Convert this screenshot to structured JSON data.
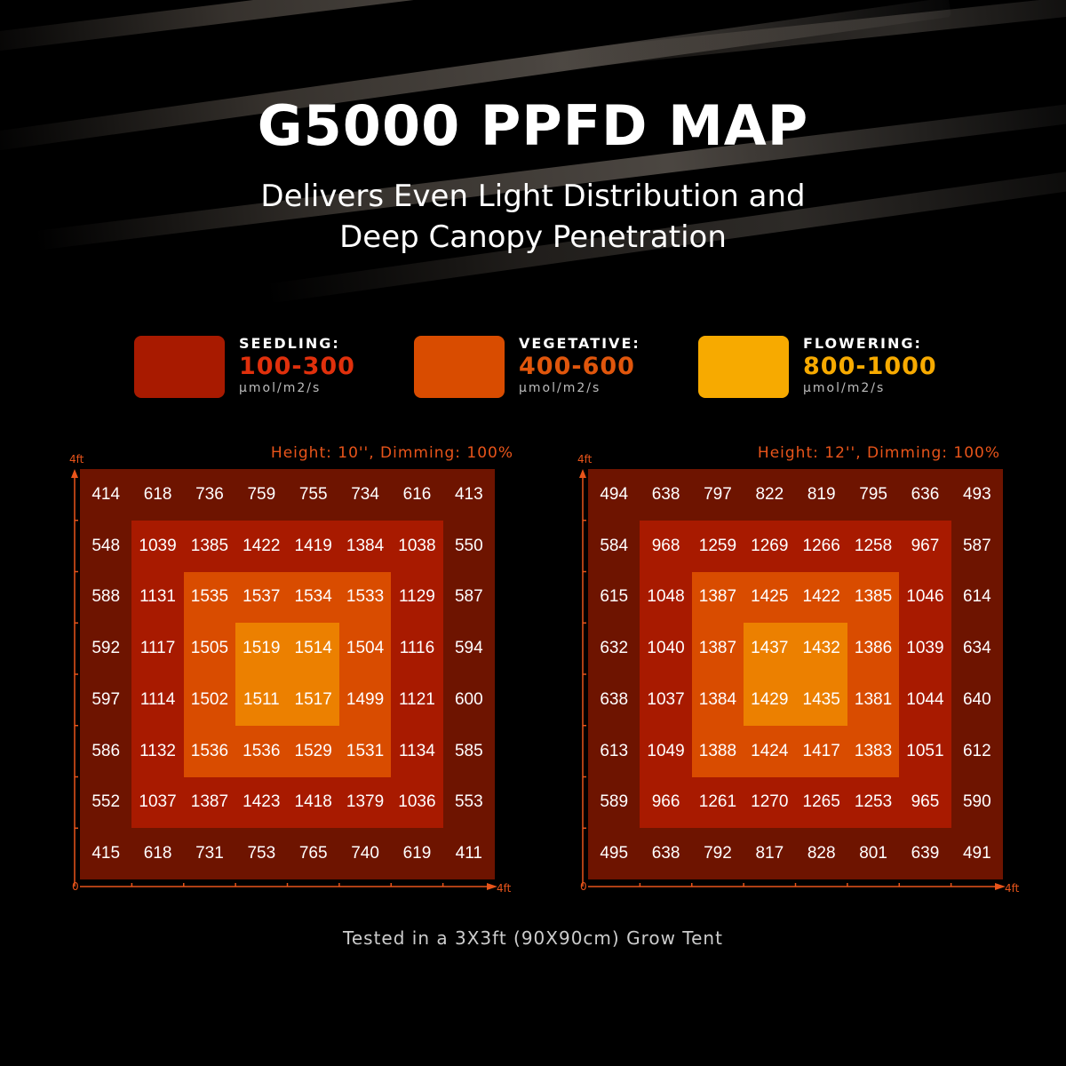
{
  "header": {
    "title": "G5000 PPFD MAP",
    "subtitle_line1": "Delivers Even Light Distribution and",
    "subtitle_line2": "Deep Canopy Penetration"
  },
  "legend": [
    {
      "name": "SEEDLING:",
      "range": "100-300",
      "unit": "μmol/m2/s",
      "color": "#a81a00",
      "text_color": "#e0300c"
    },
    {
      "name": "VEGETATIVE:",
      "range": "400-600",
      "unit": "μmol/m2/s",
      "color": "#d94c00",
      "text_color": "#e0560c"
    },
    {
      "name": "FLOWERING:",
      "range": "800-1000",
      "unit": "μmol/m2/s",
      "color": "#f7aa00",
      "text_color": "#f7aa00"
    }
  ],
  "ring_colors": [
    "#6e1400",
    "#a81a00",
    "#d94c00",
    "#ec8000"
  ],
  "axis_color": "#e8541a",
  "chart_data": [
    {
      "type": "heatmap",
      "title": "Height: 10'', Dimming: 100%",
      "x_axis": {
        "start_label": "0",
        "end_label": "4ft"
      },
      "y_axis": {
        "end_label": "4ft"
      },
      "values": [
        [
          414,
          618,
          736,
          759,
          755,
          734,
          616,
          413
        ],
        [
          548,
          1039,
          1385,
          1422,
          1419,
          1384,
          1038,
          550
        ],
        [
          588,
          1131,
          1535,
          1537,
          1534,
          1533,
          1129,
          587
        ],
        [
          592,
          1117,
          1505,
          1519,
          1514,
          1504,
          1116,
          594
        ],
        [
          597,
          1114,
          1502,
          1511,
          1517,
          1499,
          1121,
          600
        ],
        [
          586,
          1132,
          1536,
          1536,
          1529,
          1531,
          1134,
          585
        ],
        [
          552,
          1037,
          1387,
          1423,
          1418,
          1379,
          1036,
          553
        ],
        [
          415,
          618,
          731,
          753,
          765,
          740,
          619,
          411
        ]
      ]
    },
    {
      "type": "heatmap",
      "title": "Height: 12'', Dimming: 100%",
      "x_axis": {
        "start_label": "0",
        "end_label": "4ft"
      },
      "y_axis": {
        "end_label": "4ft"
      },
      "values": [
        [
          494,
          638,
          797,
          822,
          819,
          795,
          636,
          493
        ],
        [
          584,
          968,
          1259,
          1269,
          1266,
          1258,
          967,
          587
        ],
        [
          615,
          1048,
          1387,
          1425,
          1422,
          1385,
          1046,
          614
        ],
        [
          632,
          1040,
          1387,
          1437,
          1432,
          1386,
          1039,
          634
        ],
        [
          638,
          1037,
          1384,
          1429,
          1435,
          1381,
          1044,
          640
        ],
        [
          613,
          1049,
          1388,
          1424,
          1417,
          1383,
          1051,
          612
        ],
        [
          589,
          966,
          1261,
          1270,
          1265,
          1253,
          965,
          590
        ],
        [
          495,
          638,
          792,
          817,
          828,
          801,
          639,
          491
        ]
      ]
    }
  ],
  "footer": "Tested in a 3X3ft (90X90cm) Grow Tent"
}
